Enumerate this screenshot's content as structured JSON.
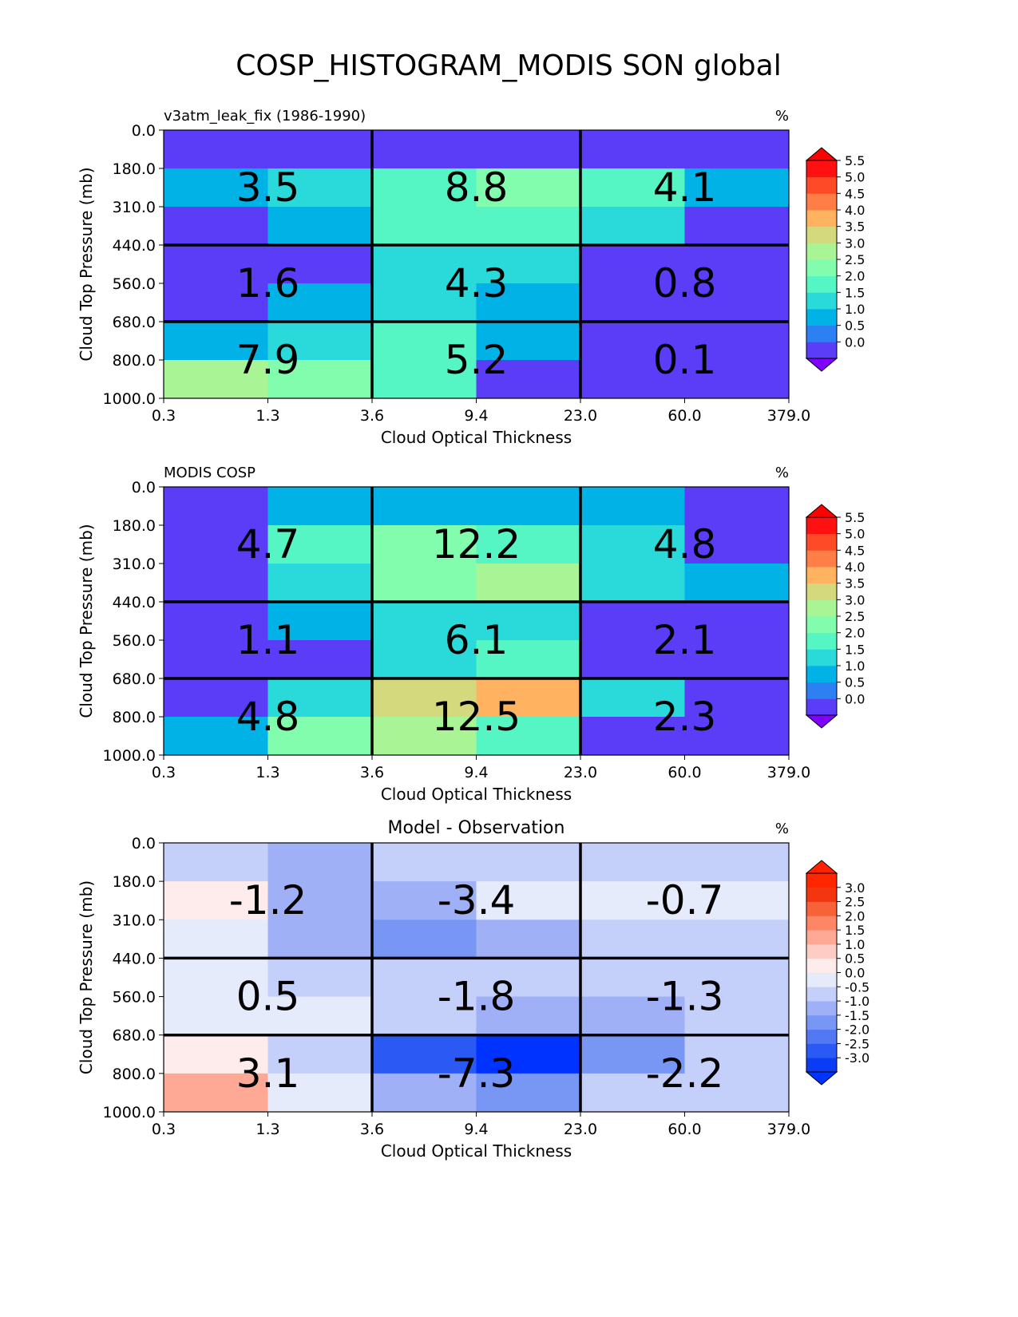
{
  "title": "COSP_HISTOGRAM_MODIS SON global",
  "chart_data": [
    {
      "type": "heatmap",
      "title_left": "v3atm_leak_fix (1986-1990)",
      "title_center": "",
      "units": "%",
      "xlabel": "Cloud Optical Thickness",
      "ylabel": "Cloud Top Pressure (mb)",
      "x_ticks": [
        "0.3",
        "1.3",
        "3.6",
        "9.4",
        "23.0",
        "60.0",
        "379.0"
      ],
      "y_ticks": [
        "0.0",
        "180.0",
        "310.0",
        "440.0",
        "560.0",
        "680.0",
        "800.0",
        "1000.0"
      ],
      "cells": [
        [
          0.3,
          0.3,
          0.3,
          0.3,
          0.3,
          0.3
        ],
        [
          1.0,
          1.5,
          2.0,
          2.8,
          2.0,
          1.0
        ],
        [
          0.3,
          1.0,
          2.0,
          2.3,
          1.5,
          0.3
        ],
        [
          0.3,
          0.3,
          1.5,
          1.5,
          0.3,
          0.3
        ],
        [
          0.3,
          1.0,
          1.5,
          1.0,
          0.3,
          0.3
        ],
        [
          1.0,
          1.5,
          2.0,
          1.0,
          0.3,
          0.3
        ],
        [
          3.2,
          2.8,
          2.3,
          0.3,
          0.3,
          0.3
        ]
      ],
      "box_labels": [
        [
          "3.5",
          "8.8",
          "4.1"
        ],
        [
          "1.6",
          "4.3",
          "0.8"
        ],
        [
          "7.9",
          "5.2",
          "0.1"
        ]
      ],
      "colorbar": {
        "ticks": [
          "0.0",
          "0.5",
          "1.0",
          "1.5",
          "2.0",
          "2.5",
          "3.0",
          "3.5",
          "4.0",
          "4.5",
          "5.0",
          "5.5"
        ],
        "levels": [
          0.0,
          0.5,
          1.0,
          1.5,
          2.0,
          2.5,
          3.0,
          3.5,
          4.0,
          4.5,
          5.0,
          5.5
        ],
        "colors": [
          "#5b3df7",
          "#2d80f2",
          "#00b2e6",
          "#2ad9d9",
          "#56f5c4",
          "#82fcad",
          "#a9f595",
          "#d3d97c",
          "#ffb25f",
          "#ff7d46",
          "#ff4a28",
          "#ff1111"
        ],
        "under": "#8000ff",
        "over": "#ff0000"
      }
    },
    {
      "type": "heatmap",
      "title_left": "MODIS COSP",
      "title_center": "",
      "units": "%",
      "xlabel": "Cloud Optical Thickness",
      "ylabel": "Cloud Top Pressure (mb)",
      "x_ticks": [
        "0.3",
        "1.3",
        "3.6",
        "9.4",
        "23.0",
        "60.0",
        "379.0"
      ],
      "y_ticks": [
        "0.0",
        "180.0",
        "310.0",
        "440.0",
        "560.0",
        "680.0",
        "800.0",
        "1000.0"
      ],
      "cells": [
        [
          0.3,
          1.0,
          1.0,
          1.0,
          1.0,
          0.3
        ],
        [
          0.3,
          2.0,
          2.8,
          2.3,
          1.5,
          0.3
        ],
        [
          0.3,
          1.5,
          2.8,
          3.2,
          1.5,
          1.0
        ],
        [
          0.3,
          1.0,
          1.5,
          1.5,
          0.3,
          0.3
        ],
        [
          0.3,
          0.3,
          1.5,
          2.0,
          0.3,
          0.3
        ],
        [
          0.3,
          1.5,
          3.7,
          4.2,
          1.5,
          0.3
        ],
        [
          1.0,
          2.8,
          3.2,
          2.0,
          0.3,
          0.3
        ]
      ],
      "box_labels": [
        [
          "4.7",
          "12.2",
          "4.8"
        ],
        [
          "1.1",
          "6.1",
          "2.1"
        ],
        [
          "4.8",
          "12.5",
          "2.3"
        ]
      ],
      "colorbar": {
        "ticks": [
          "0.0",
          "0.5",
          "1.0",
          "1.5",
          "2.0",
          "2.5",
          "3.0",
          "3.5",
          "4.0",
          "4.5",
          "5.0",
          "5.5"
        ],
        "levels": [
          0.0,
          0.5,
          1.0,
          1.5,
          2.0,
          2.5,
          3.0,
          3.5,
          4.0,
          4.5,
          5.0,
          5.5
        ],
        "colors": [
          "#5b3df7",
          "#2d80f2",
          "#00b2e6",
          "#2ad9d9",
          "#56f5c4",
          "#82fcad",
          "#a9f595",
          "#d3d97c",
          "#ffb25f",
          "#ff7d46",
          "#ff4a28",
          "#ff1111"
        ],
        "under": "#8000ff",
        "over": "#ff0000"
      }
    },
    {
      "type": "heatmap",
      "title_left": "",
      "title_center": "Model - Observation",
      "units": "%",
      "xlabel": "Cloud Optical Thickness",
      "ylabel": "Cloud Top Pressure (mb)",
      "x_ticks": [
        "0.3",
        "1.3",
        "3.6",
        "9.4",
        "23.0",
        "60.0",
        "379.0"
      ],
      "y_ticks": [
        "0.0",
        "180.0",
        "310.0",
        "440.0",
        "560.0",
        "680.0",
        "800.0",
        "1000.0"
      ],
      "cells": [
        [
          -0.2,
          -0.7,
          -0.2,
          -0.2,
          -0.2,
          -0.2
        ],
        [
          0.7,
          -0.7,
          -0.7,
          0.2,
          0.2,
          0.2
        ],
        [
          0.2,
          -0.7,
          -1.2,
          -0.7,
          -0.2,
          -0.2
        ],
        [
          0.2,
          -0.2,
          -0.2,
          -0.2,
          -0.2,
          -0.2
        ],
        [
          0.2,
          0.2,
          -0.2,
          -0.7,
          -0.7,
          -0.2
        ],
        [
          0.7,
          -0.2,
          -2.2,
          -3.2,
          -1.2,
          -0.2
        ],
        [
          1.7,
          0.2,
          -0.7,
          -1.2,
          -0.2,
          -0.2
        ]
      ],
      "box_labels": [
        [
          "-1.2",
          "-3.4",
          "-0.7"
        ],
        [
          "0.5",
          "-1.8",
          "-1.3"
        ],
        [
          "3.1",
          "-7.3",
          "-2.2"
        ]
      ],
      "colorbar": {
        "ticks": [
          "-3.0",
          "-2.5",
          "-2.0",
          "-1.5",
          "-1.0",
          "-0.5",
          "0.0",
          "0.5",
          "1.0",
          "1.5",
          "2.0",
          "2.5",
          "3.0"
        ],
        "levels": [
          -3.0,
          -2.5,
          -2.0,
          -1.5,
          -1.0,
          -0.5,
          0.0,
          0.5,
          1.0,
          1.5,
          2.0,
          2.5,
          3.0
        ],
        "colors": [
          "#0a3cf5",
          "#2a59f3",
          "#5279f2",
          "#7896f3",
          "#9fb0f6",
          "#c4cffa",
          "#e6ebfc",
          "#fdeceb",
          "#fdcdc5",
          "#fda995",
          "#fc8665",
          "#f86238",
          "#f3360f",
          "#ff2600"
        ],
        "under": "#0033ff",
        "over": "#ff2200"
      }
    }
  ]
}
